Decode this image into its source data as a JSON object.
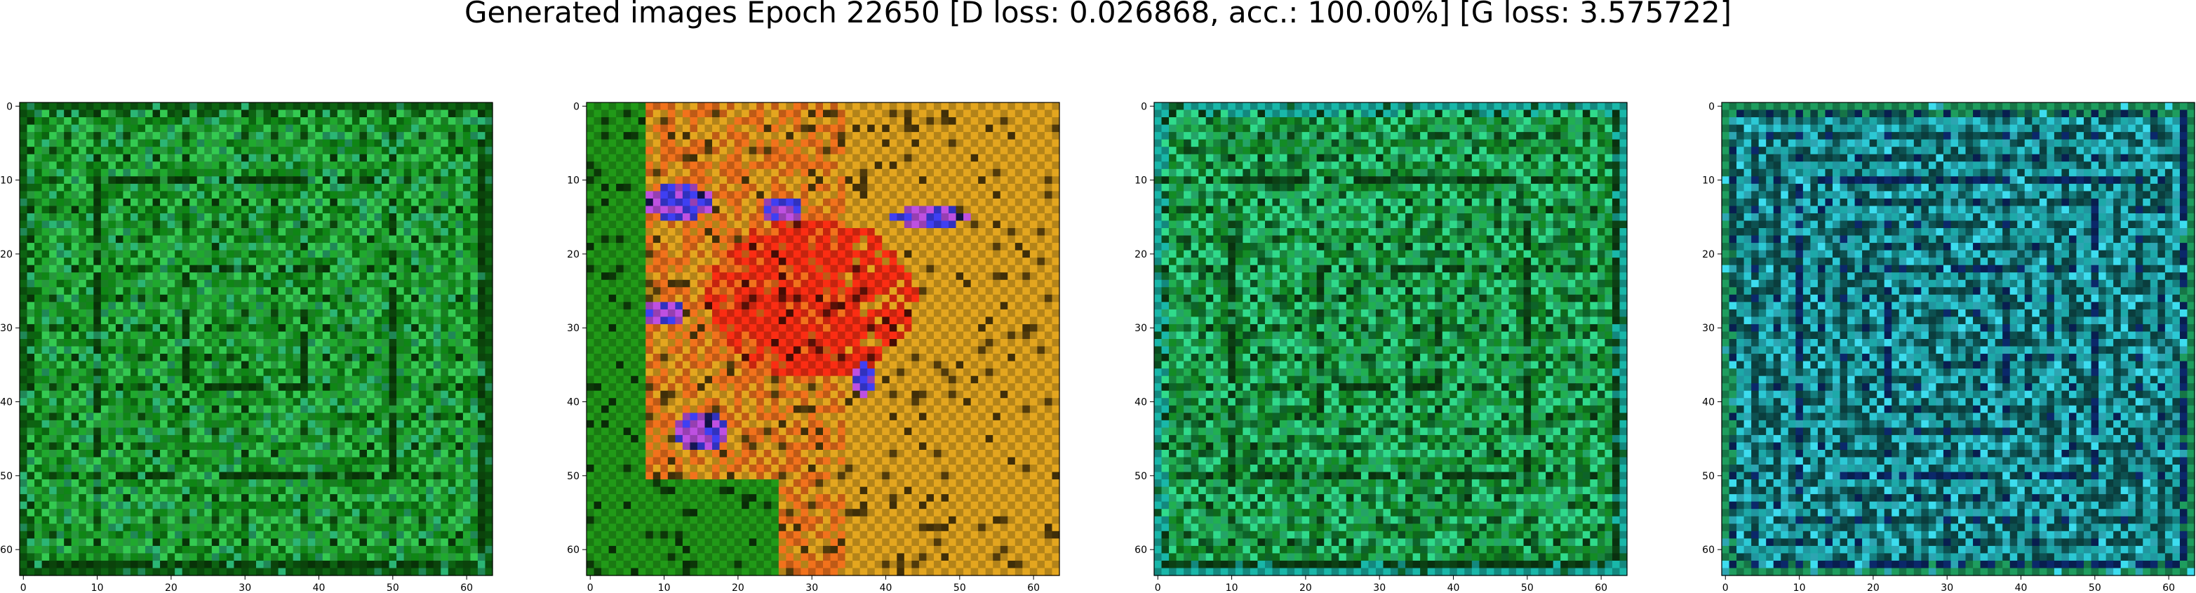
{
  "figure": {
    "title": "Generated images Epoch 22650 [D loss: 0.026868, acc.: 100.00%] [G loss: 3.575722]"
  },
  "panels": [
    {
      "name": "panel-1",
      "description_palette": [
        "#0e7a13",
        "#1d9a2a",
        "#2fb84a",
        "#0a3d0a",
        "#0c5a10",
        "#27a56a"
      ],
      "x_ticks": [
        "0",
        "10",
        "20",
        "30",
        "40",
        "50",
        "60"
      ],
      "y_ticks": [
        "0",
        "10",
        "20",
        "30",
        "40",
        "50",
        "60"
      ]
    },
    {
      "name": "panel-2",
      "description_palette": [
        "#1f8f16",
        "#d39a1d",
        "#e06a1a",
        "#e82a12",
        "#3a3ae0",
        "#b04ad0",
        "#c9a03a",
        "#7a5a10"
      ],
      "x_ticks": [
        "0",
        "10",
        "20",
        "30",
        "40",
        "50",
        "60"
      ],
      "y_ticks": [
        "0",
        "10",
        "20",
        "30",
        "40",
        "50",
        "60"
      ]
    },
    {
      "name": "panel-3",
      "description_palette": [
        "#117f22",
        "#1ea04a",
        "#2cc77e",
        "#0b3a12",
        "#17a69a",
        "#0c5a25"
      ],
      "x_ticks": [
        "0",
        "10",
        "20",
        "30",
        "40",
        "50",
        "60"
      ],
      "y_ticks": [
        "0",
        "10",
        "20",
        "30",
        "40",
        "50",
        "60"
      ]
    },
    {
      "name": "panel-4",
      "description_palette": [
        "#1a9a9a",
        "#28b7c2",
        "#0c4a4a",
        "#0a2460",
        "#1b8f55",
        "#37c9d9"
      ],
      "x_ticks": [
        "0",
        "10",
        "20",
        "30",
        "40",
        "50",
        "60"
      ],
      "y_ticks": [
        "0",
        "10",
        "20",
        "30",
        "40",
        "50",
        "60"
      ]
    }
  ]
}
